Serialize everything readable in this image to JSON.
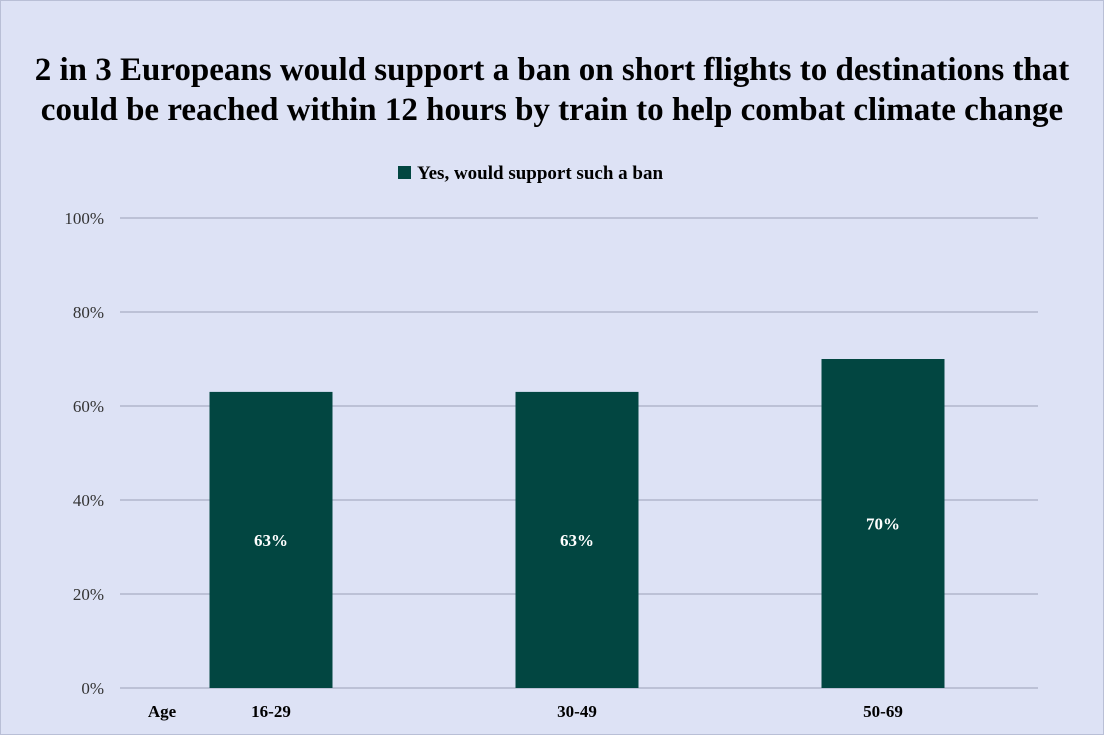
{
  "chart_data": {
    "type": "bar",
    "title": "2 in 3 Europeans would support a ban on short flights to destinations that could be reached within 12 hours by train to help combat climate change",
    "xlabel": "Age",
    "ylabel": "",
    "categories": [
      "16-29",
      "30-49",
      "50-69"
    ],
    "series": [
      {
        "name": "Yes, would support such a ban",
        "values": [
          63,
          63,
          70
        ],
        "color": "#024641"
      }
    ],
    "data_labels": [
      "63%",
      "63%",
      "70%"
    ],
    "ylim": [
      0,
      100
    ],
    "yticks": [
      0,
      20,
      40,
      60,
      80,
      100
    ],
    "ytick_labels": [
      "0%",
      "20%",
      "40%",
      "60%",
      "80%",
      "100%"
    ],
    "grid": true,
    "legend_position": "top",
    "colors": {
      "background": "#dde2f5",
      "grid": "#9aa0b8",
      "bar": "#024641"
    }
  }
}
